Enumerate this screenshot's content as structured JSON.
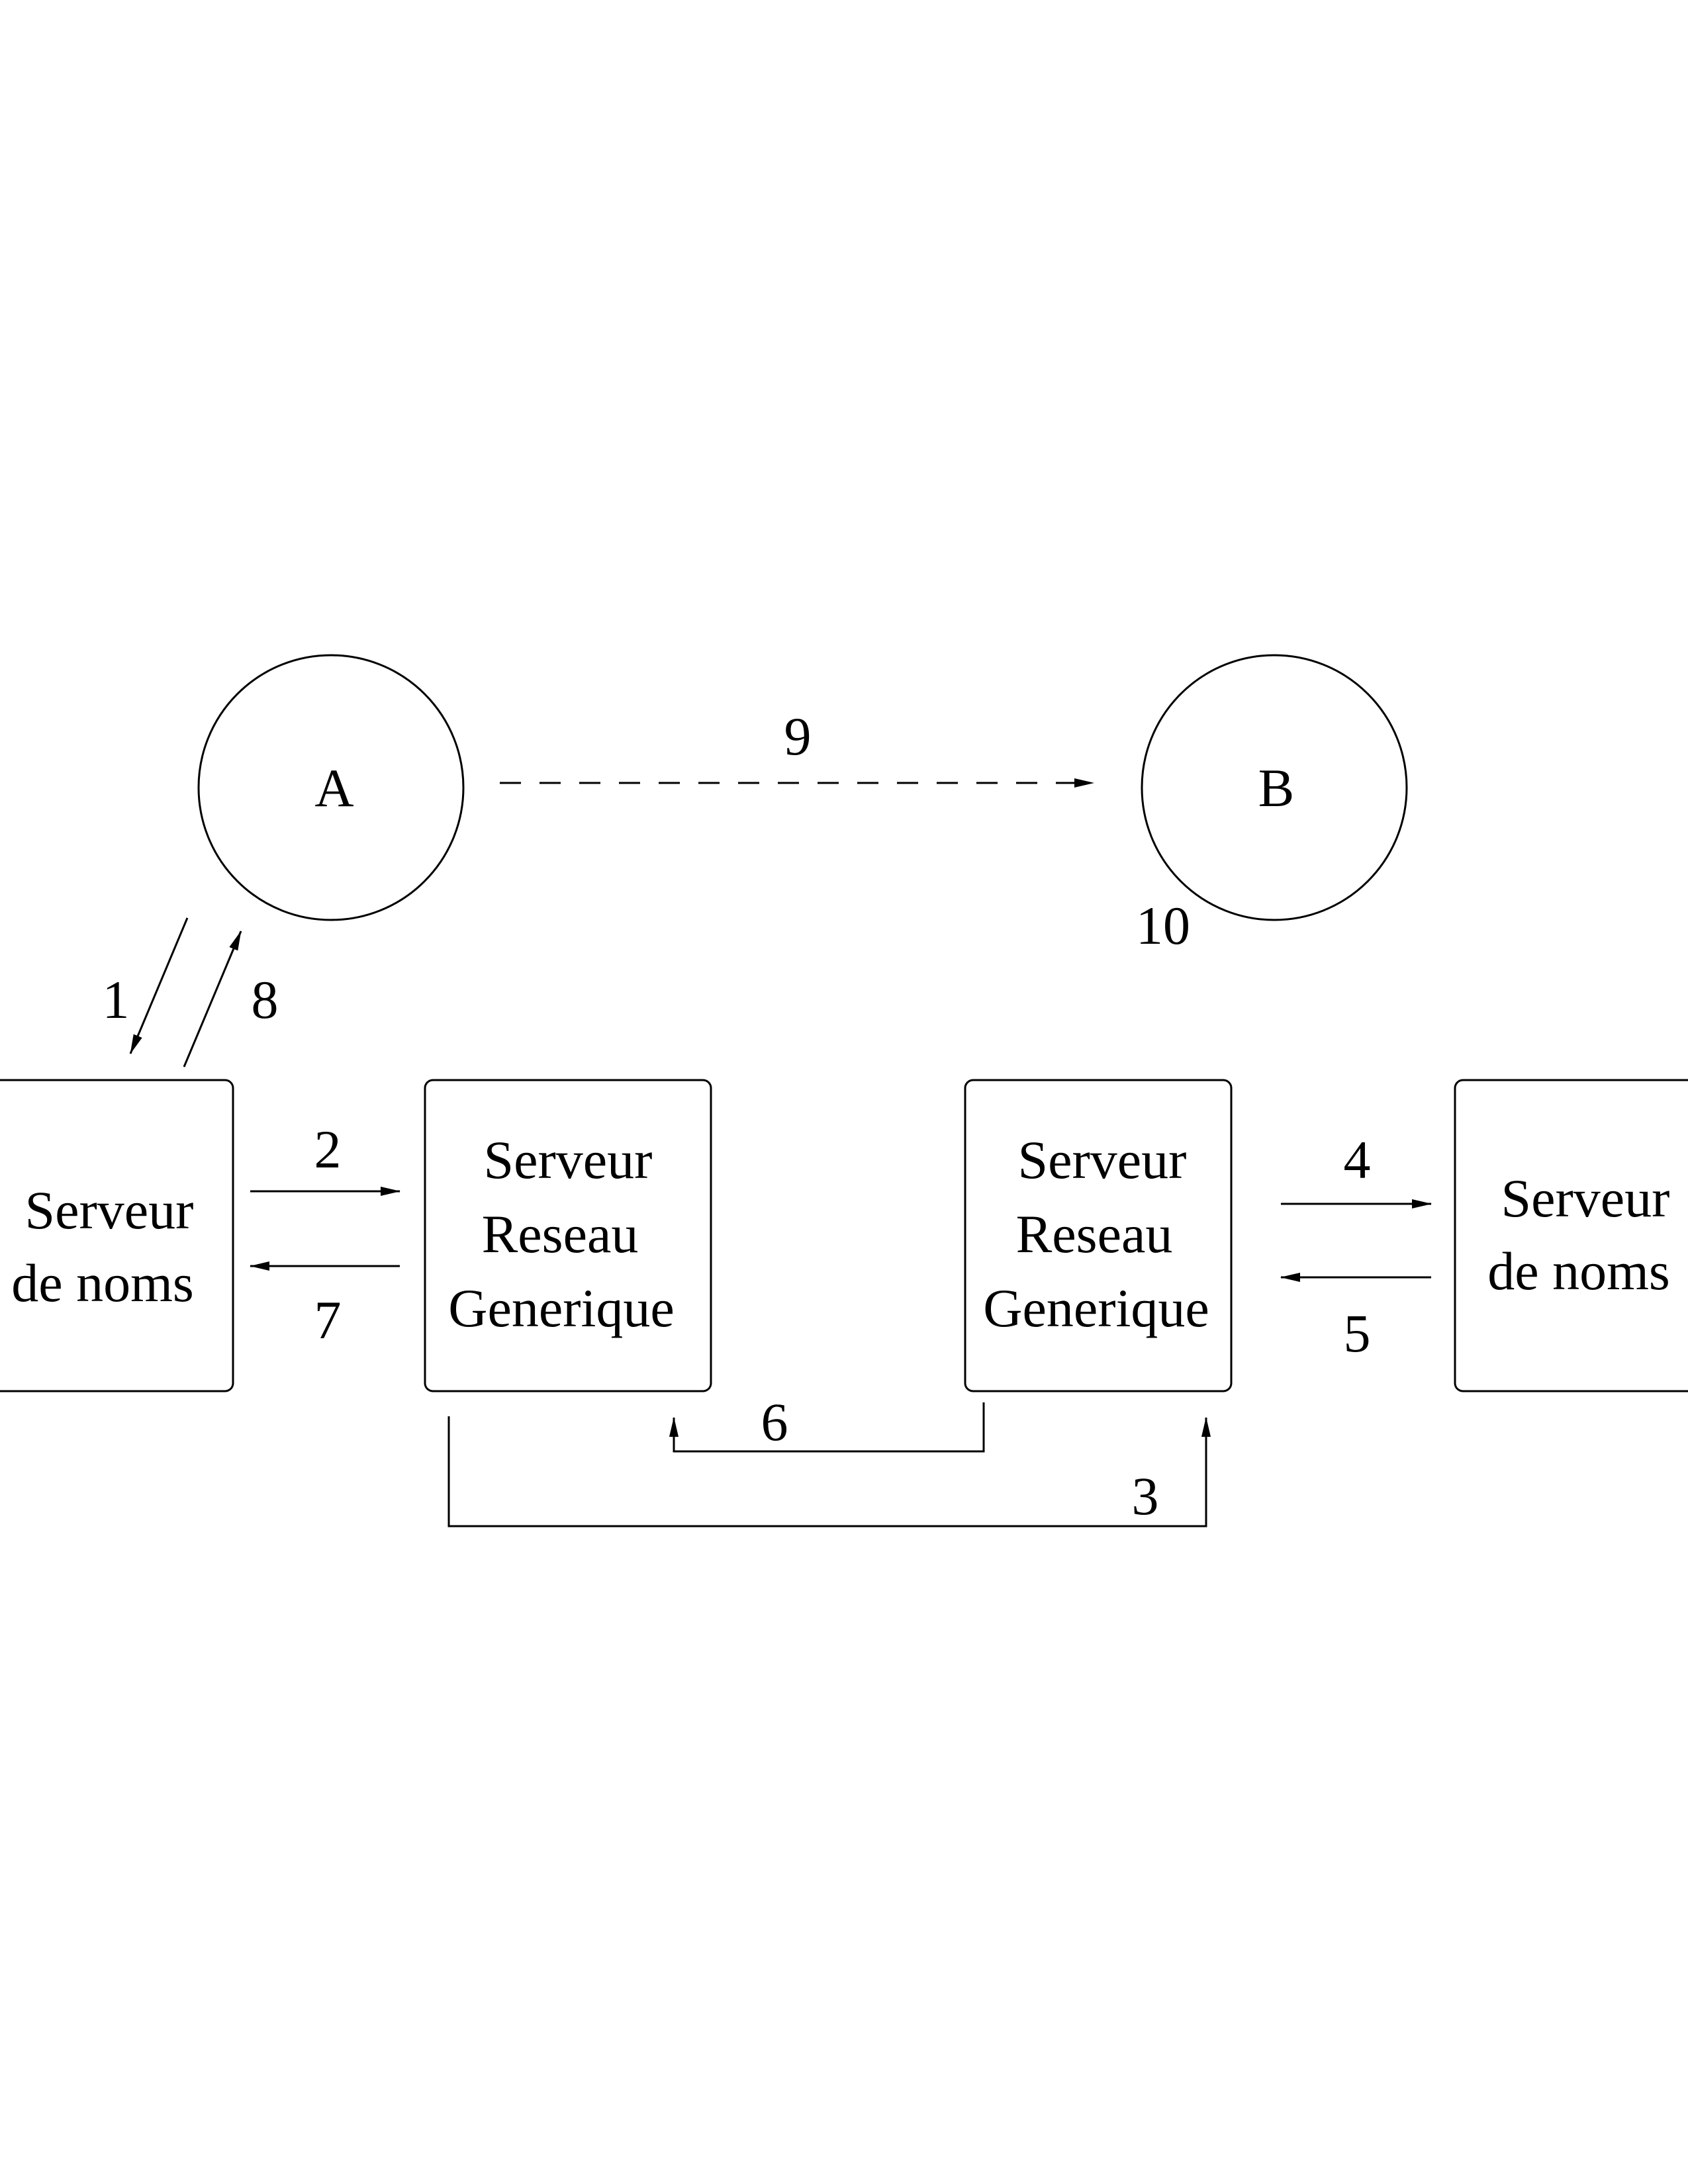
{
  "nodes": {
    "client_a": "A",
    "client_b": "B",
    "name_server_left": [
      "Serveur",
      "de noms"
    ],
    "network_server_left": [
      "Serveur",
      "Reseau",
      "Generique"
    ],
    "network_server_right": [
      "Serveur",
      "Reseau",
      "Generique"
    ],
    "name_server_right": [
      "Serveur",
      "de noms"
    ]
  },
  "steps": {
    "s1": "1",
    "s2": "2",
    "s3": "3",
    "s4": "4",
    "s5": "5",
    "s6": "6",
    "s7": "7",
    "s8": "8",
    "s9": "9",
    "s10": "10"
  }
}
